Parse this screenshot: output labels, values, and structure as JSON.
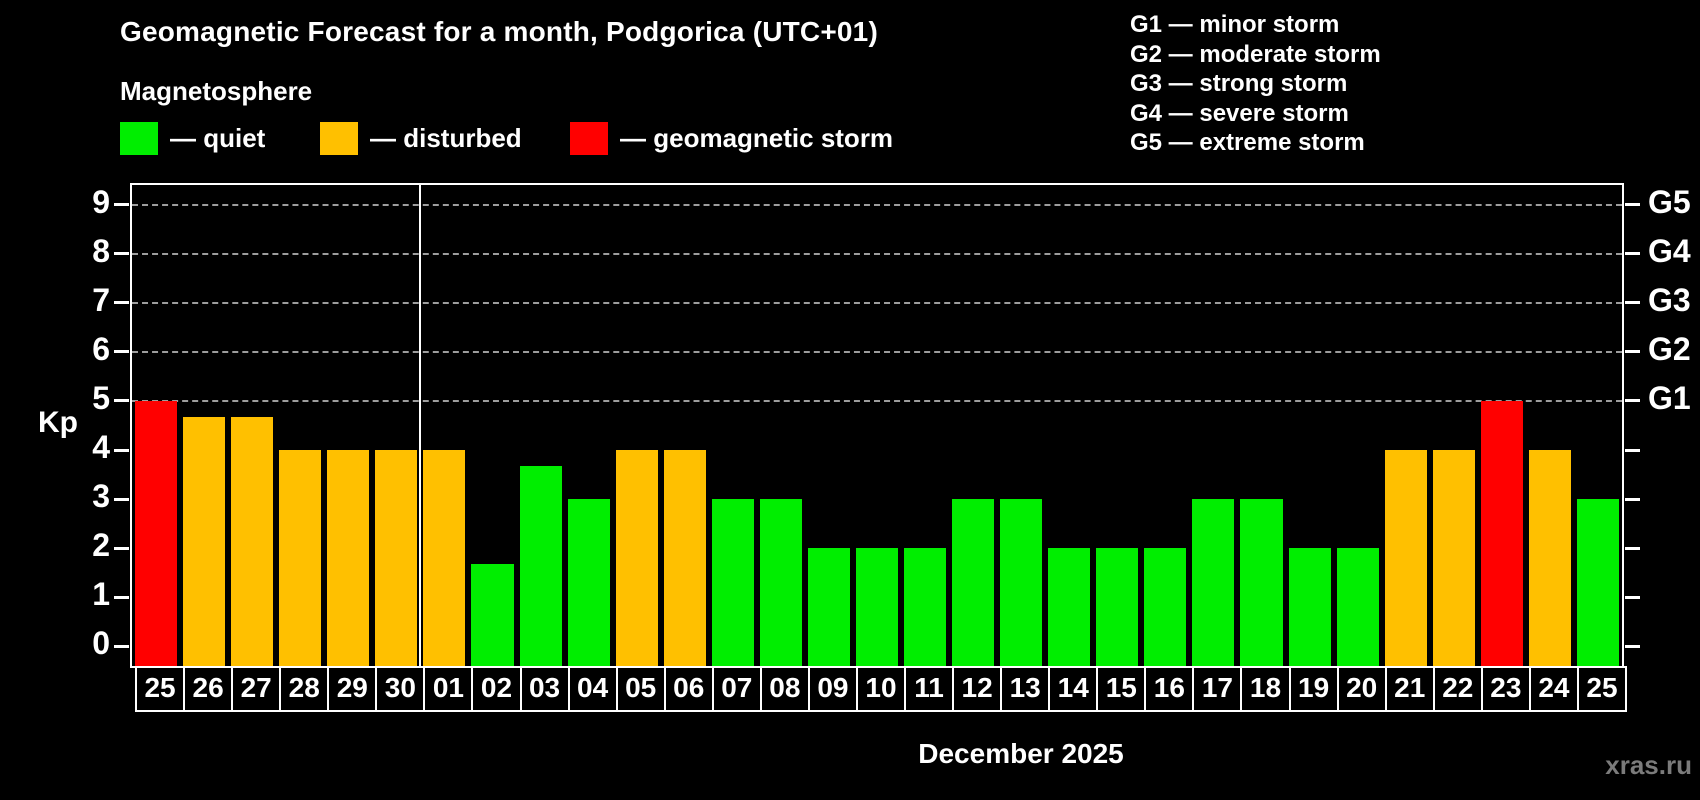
{
  "header": {
    "title": "Geomagnetic Forecast for a month, Podgorica (UTC+01)",
    "subtitle": "Magnetosphere"
  },
  "colors": {
    "quiet": "#00ee00",
    "disturbed": "#ffc000",
    "storm": "#ff0000",
    "grid": "#9d9d9d",
    "frame": "#ffffff",
    "text": "#ffffff",
    "watermark": "#7b7b7b"
  },
  "legend": {
    "items": [
      {
        "status": "quiet",
        "label": "— quiet"
      },
      {
        "status": "disturbed",
        "label": "— disturbed"
      },
      {
        "status": "storm",
        "label": "— geomagnetic storm"
      }
    ]
  },
  "g_scale_legend": {
    "lines": [
      "G1 — minor storm",
      "G2 — moderate storm",
      "G3 — strong storm",
      "G4 — severe storm",
      "G5 — extreme storm"
    ]
  },
  "axis": {
    "ylabel": "Kp",
    "y_ticks": [
      "0",
      "1",
      "2",
      "3",
      "4",
      "5",
      "6",
      "7",
      "8",
      "9"
    ],
    "g_labels": [
      {
        "kp": 5,
        "text": "G1"
      },
      {
        "kp": 6,
        "text": "G2"
      },
      {
        "kp": 7,
        "text": "G3"
      },
      {
        "kp": 8,
        "text": "G4"
      },
      {
        "kp": 9,
        "text": "G5"
      }
    ]
  },
  "chart_data": {
    "type": "bar",
    "title": "Geomagnetic Forecast for a month, Podgorica (UTC+01)",
    "subtitle": "Magnetosphere",
    "xlabel": "December 2025",
    "ylabel": "Kp",
    "ylim": [
      -0.4,
      9.4
    ],
    "grid": "dashed horizontal lines at Kp 5-9 only",
    "categories": [
      "25",
      "26",
      "27",
      "28",
      "29",
      "30",
      "01",
      "02",
      "03",
      "04",
      "05",
      "06",
      "07",
      "08",
      "09",
      "10",
      "11",
      "12",
      "13",
      "14",
      "15",
      "16",
      "17",
      "18",
      "19",
      "20",
      "21",
      "22",
      "23",
      "24",
      "25"
    ],
    "values": [
      5,
      4.67,
      4.67,
      4,
      4,
      4,
      4,
      1.67,
      3.67,
      3,
      4,
      4,
      3,
      3,
      2,
      2,
      2,
      3,
      3,
      2,
      2,
      2,
      3,
      3,
      2,
      2,
      4,
      4,
      5,
      4,
      3
    ],
    "statuses": [
      "storm",
      "disturbed",
      "disturbed",
      "disturbed",
      "disturbed",
      "disturbed",
      "disturbed",
      "quiet",
      "quiet",
      "quiet",
      "disturbed",
      "disturbed",
      "quiet",
      "quiet",
      "quiet",
      "quiet",
      "quiet",
      "quiet",
      "quiet",
      "quiet",
      "quiet",
      "quiet",
      "quiet",
      "quiet",
      "quiet",
      "quiet",
      "disturbed",
      "disturbed",
      "storm",
      "disturbed",
      "quiet"
    ],
    "gridlines_at": [
      5,
      6,
      7,
      8,
      9
    ],
    "month_separator_after_index": 5
  },
  "footer": {
    "month_label": "December 2025",
    "watermark": "xras.ru"
  }
}
